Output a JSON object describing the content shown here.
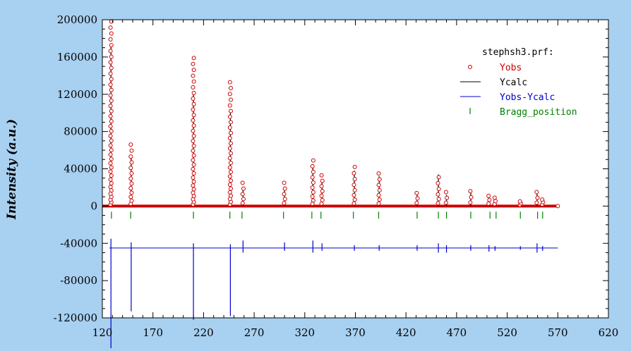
{
  "chart_data": {
    "type": "scatter",
    "ylabel": "Intensity (a.u.)",
    "xlim": [
      120,
      620
    ],
    "ylim": [
      -120000,
      200000
    ],
    "x_ticks": [
      120,
      170,
      220,
      270,
      320,
      370,
      420,
      470,
      520,
      570,
      620
    ],
    "y_ticks": [
      200000,
      160000,
      120000,
      80000,
      40000,
      0,
      -40000,
      -80000,
      -120000
    ],
    "legend": {
      "title": "stephsh3.prf:",
      "placement": "top-right",
      "entries": [
        {
          "label": "Yobs",
          "color": "#cc0000"
        },
        {
          "label": "Ycalc",
          "color": "#000000"
        },
        {
          "label": "Yobs-Ycalc",
          "color": "#0000cc"
        },
        {
          "label": "Bragg_position",
          "color": "#008000"
        }
      ]
    },
    "difference_offset": -45000,
    "bragg_positions": [
      129,
      148,
      210,
      246,
      258,
      299,
      327,
      336,
      368,
      393,
      431,
      452,
      460,
      484,
      503,
      509,
      533,
      550,
      555
    ],
    "peaks": [
      {
        "x": 128.5,
        "obs": 198000,
        "calc": 172000,
        "diff_min": -115000,
        "diff_max": 10000
      },
      {
        "x": 148.5,
        "obs": 66000,
        "calc": 52000,
        "diff_min": -68000,
        "diff_max": 6000
      },
      {
        "x": 210,
        "obs": 159000,
        "calc": 121000,
        "diff_min": -77000,
        "diff_max": 5000
      },
      {
        "x": 246.5,
        "obs": 133000,
        "calc": 104000,
        "diff_min": -73000,
        "diff_max": 4000
      },
      {
        "x": 259,
        "obs": 25000,
        "calc": 20000,
        "diff_min": -5000,
        "diff_max": 8000
      },
      {
        "x": 300,
        "obs": 25000,
        "calc": 21000,
        "diff_min": -3000,
        "diff_max": 6000
      },
      {
        "x": 328,
        "obs": 49000,
        "calc": 45000,
        "diff_min": -5000,
        "diff_max": 8000
      },
      {
        "x": 337,
        "obs": 33000,
        "calc": 29000,
        "diff_min": -3000,
        "diff_max": 5000
      },
      {
        "x": 369,
        "obs": 42000,
        "calc": 38000,
        "diff_min": -3000,
        "diff_max": 3000
      },
      {
        "x": 393.5,
        "obs": 35000,
        "calc": 32000,
        "diff_min": -3000,
        "diff_max": 3000
      },
      {
        "x": 431,
        "obs": 14000,
        "calc": 12000,
        "diff_min": -3000,
        "diff_max": 3000
      },
      {
        "x": 452,
        "obs": 31000,
        "calc": 34000,
        "diff_min": -5000,
        "diff_max": 5000
      },
      {
        "x": 460,
        "obs": 15000,
        "calc": 12000,
        "diff_min": -5000,
        "diff_max": 3000
      },
      {
        "x": 484,
        "obs": 16000,
        "calc": 14000,
        "diff_min": -3000,
        "diff_max": 3000
      },
      {
        "x": 502,
        "obs": 11000,
        "calc": 9000,
        "diff_min": -4000,
        "diff_max": 3000
      },
      {
        "x": 508,
        "obs": 9000,
        "calc": 8000,
        "diff_min": -3000,
        "diff_max": 2000
      },
      {
        "x": 533,
        "obs": 5000,
        "calc": 4000,
        "diff_min": -2000,
        "diff_max": 2000
      },
      {
        "x": 549.5,
        "obs": 15000,
        "calc": 17000,
        "diff_min": -5000,
        "diff_max": 5000
      },
      {
        "x": 555,
        "obs": 7000,
        "calc": 5000,
        "diff_min": -3000,
        "diff_max": 2000
      }
    ],
    "baseline_x": [
      120,
      570
    ]
  }
}
